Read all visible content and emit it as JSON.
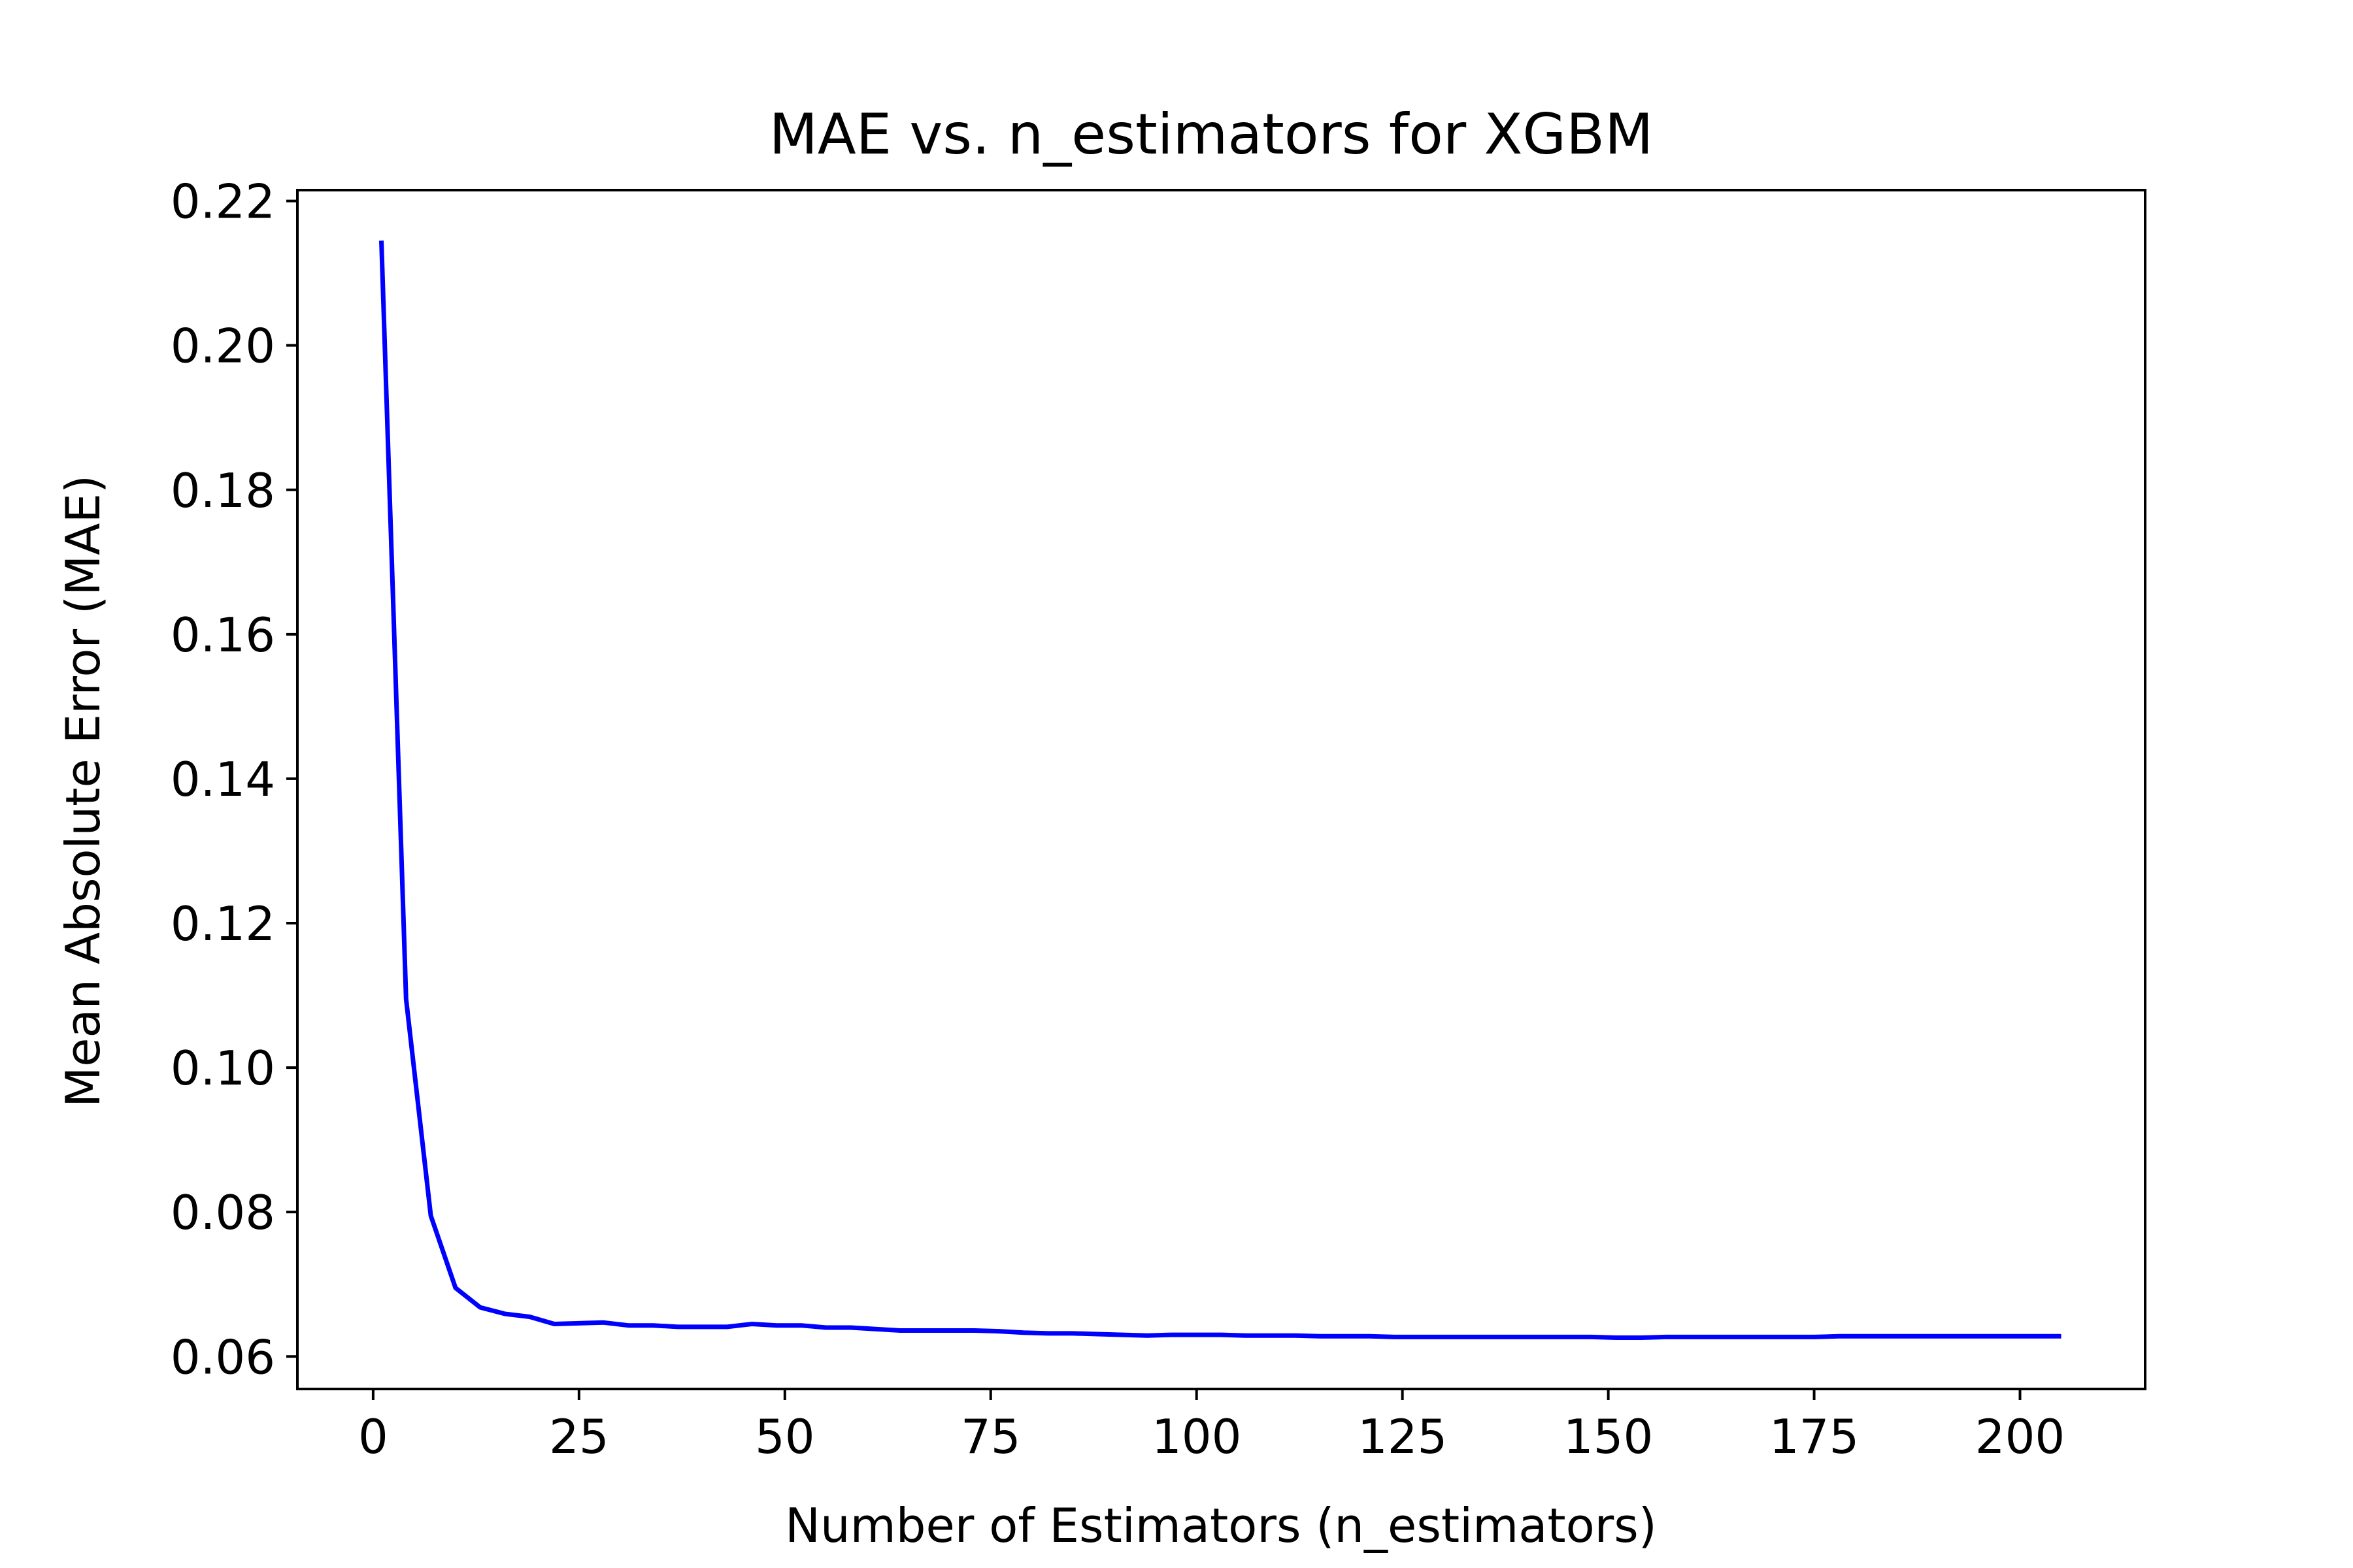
{
  "chart_data": {
    "type": "line",
    "title": "MAE vs. n_estimators for XGBM",
    "xlabel": "Number of Estimators (n_estimators)",
    "ylabel": "Mean Absolute Error (MAE)",
    "xlim": [
      -9.2,
      215.2
    ],
    "ylim": [
      0.0555,
      0.2215
    ],
    "xticks": [
      0,
      25,
      50,
      75,
      100,
      125,
      150,
      175,
      200
    ],
    "xtick_labels": [
      "0",
      "25",
      "50",
      "75",
      "100",
      "125",
      "150",
      "175",
      "200"
    ],
    "yticks": [
      0.06,
      0.08,
      0.1,
      0.12,
      0.14,
      0.16,
      0.18,
      0.2,
      0.22
    ],
    "ytick_labels": [
      "0.06",
      "0.08",
      "0.10",
      "0.12",
      "0.14",
      "0.16",
      "0.18",
      "0.20",
      "0.22"
    ],
    "grid": false,
    "legend": "none",
    "series": [
      {
        "color": "#0000ff",
        "x": [
          1,
          4,
          7,
          10,
          13,
          16,
          19,
          22,
          25,
          28,
          31,
          34,
          37,
          40,
          43,
          46,
          49,
          52,
          55,
          58,
          61,
          64,
          67,
          70,
          73,
          76,
          79,
          82,
          85,
          88,
          91,
          94,
          97,
          100,
          103,
          106,
          109,
          112,
          115,
          118,
          121,
          124,
          127,
          130,
          133,
          136,
          139,
          142,
          145,
          148,
          151,
          154,
          157,
          160,
          163,
          166,
          169,
          172,
          175,
          178,
          181,
          184,
          187,
          190,
          193,
          196,
          199,
          202,
          205
        ],
        "y": [
          0.2145,
          0.1095,
          0.0795,
          0.0695,
          0.0668,
          0.0659,
          0.0655,
          0.0645,
          0.0646,
          0.0647,
          0.0643,
          0.0643,
          0.0641,
          0.0641,
          0.0641,
          0.0645,
          0.0643,
          0.0643,
          0.064,
          0.064,
          0.0638,
          0.0636,
          0.0636,
          0.0636,
          0.0636,
          0.0635,
          0.0633,
          0.0632,
          0.0632,
          0.0631,
          0.063,
          0.0629,
          0.063,
          0.063,
          0.063,
          0.0629,
          0.0629,
          0.0629,
          0.0628,
          0.0628,
          0.0628,
          0.0627,
          0.0627,
          0.0627,
          0.0627,
          0.0627,
          0.0627,
          0.0627,
          0.0627,
          0.0627,
          0.0626,
          0.0626,
          0.0627,
          0.0627,
          0.0627,
          0.0627,
          0.0627,
          0.0627,
          0.0627,
          0.0628,
          0.0628,
          0.0628,
          0.0628,
          0.0628,
          0.0628,
          0.0628,
          0.0628,
          0.0628,
          0.0628
        ]
      }
    ]
  }
}
